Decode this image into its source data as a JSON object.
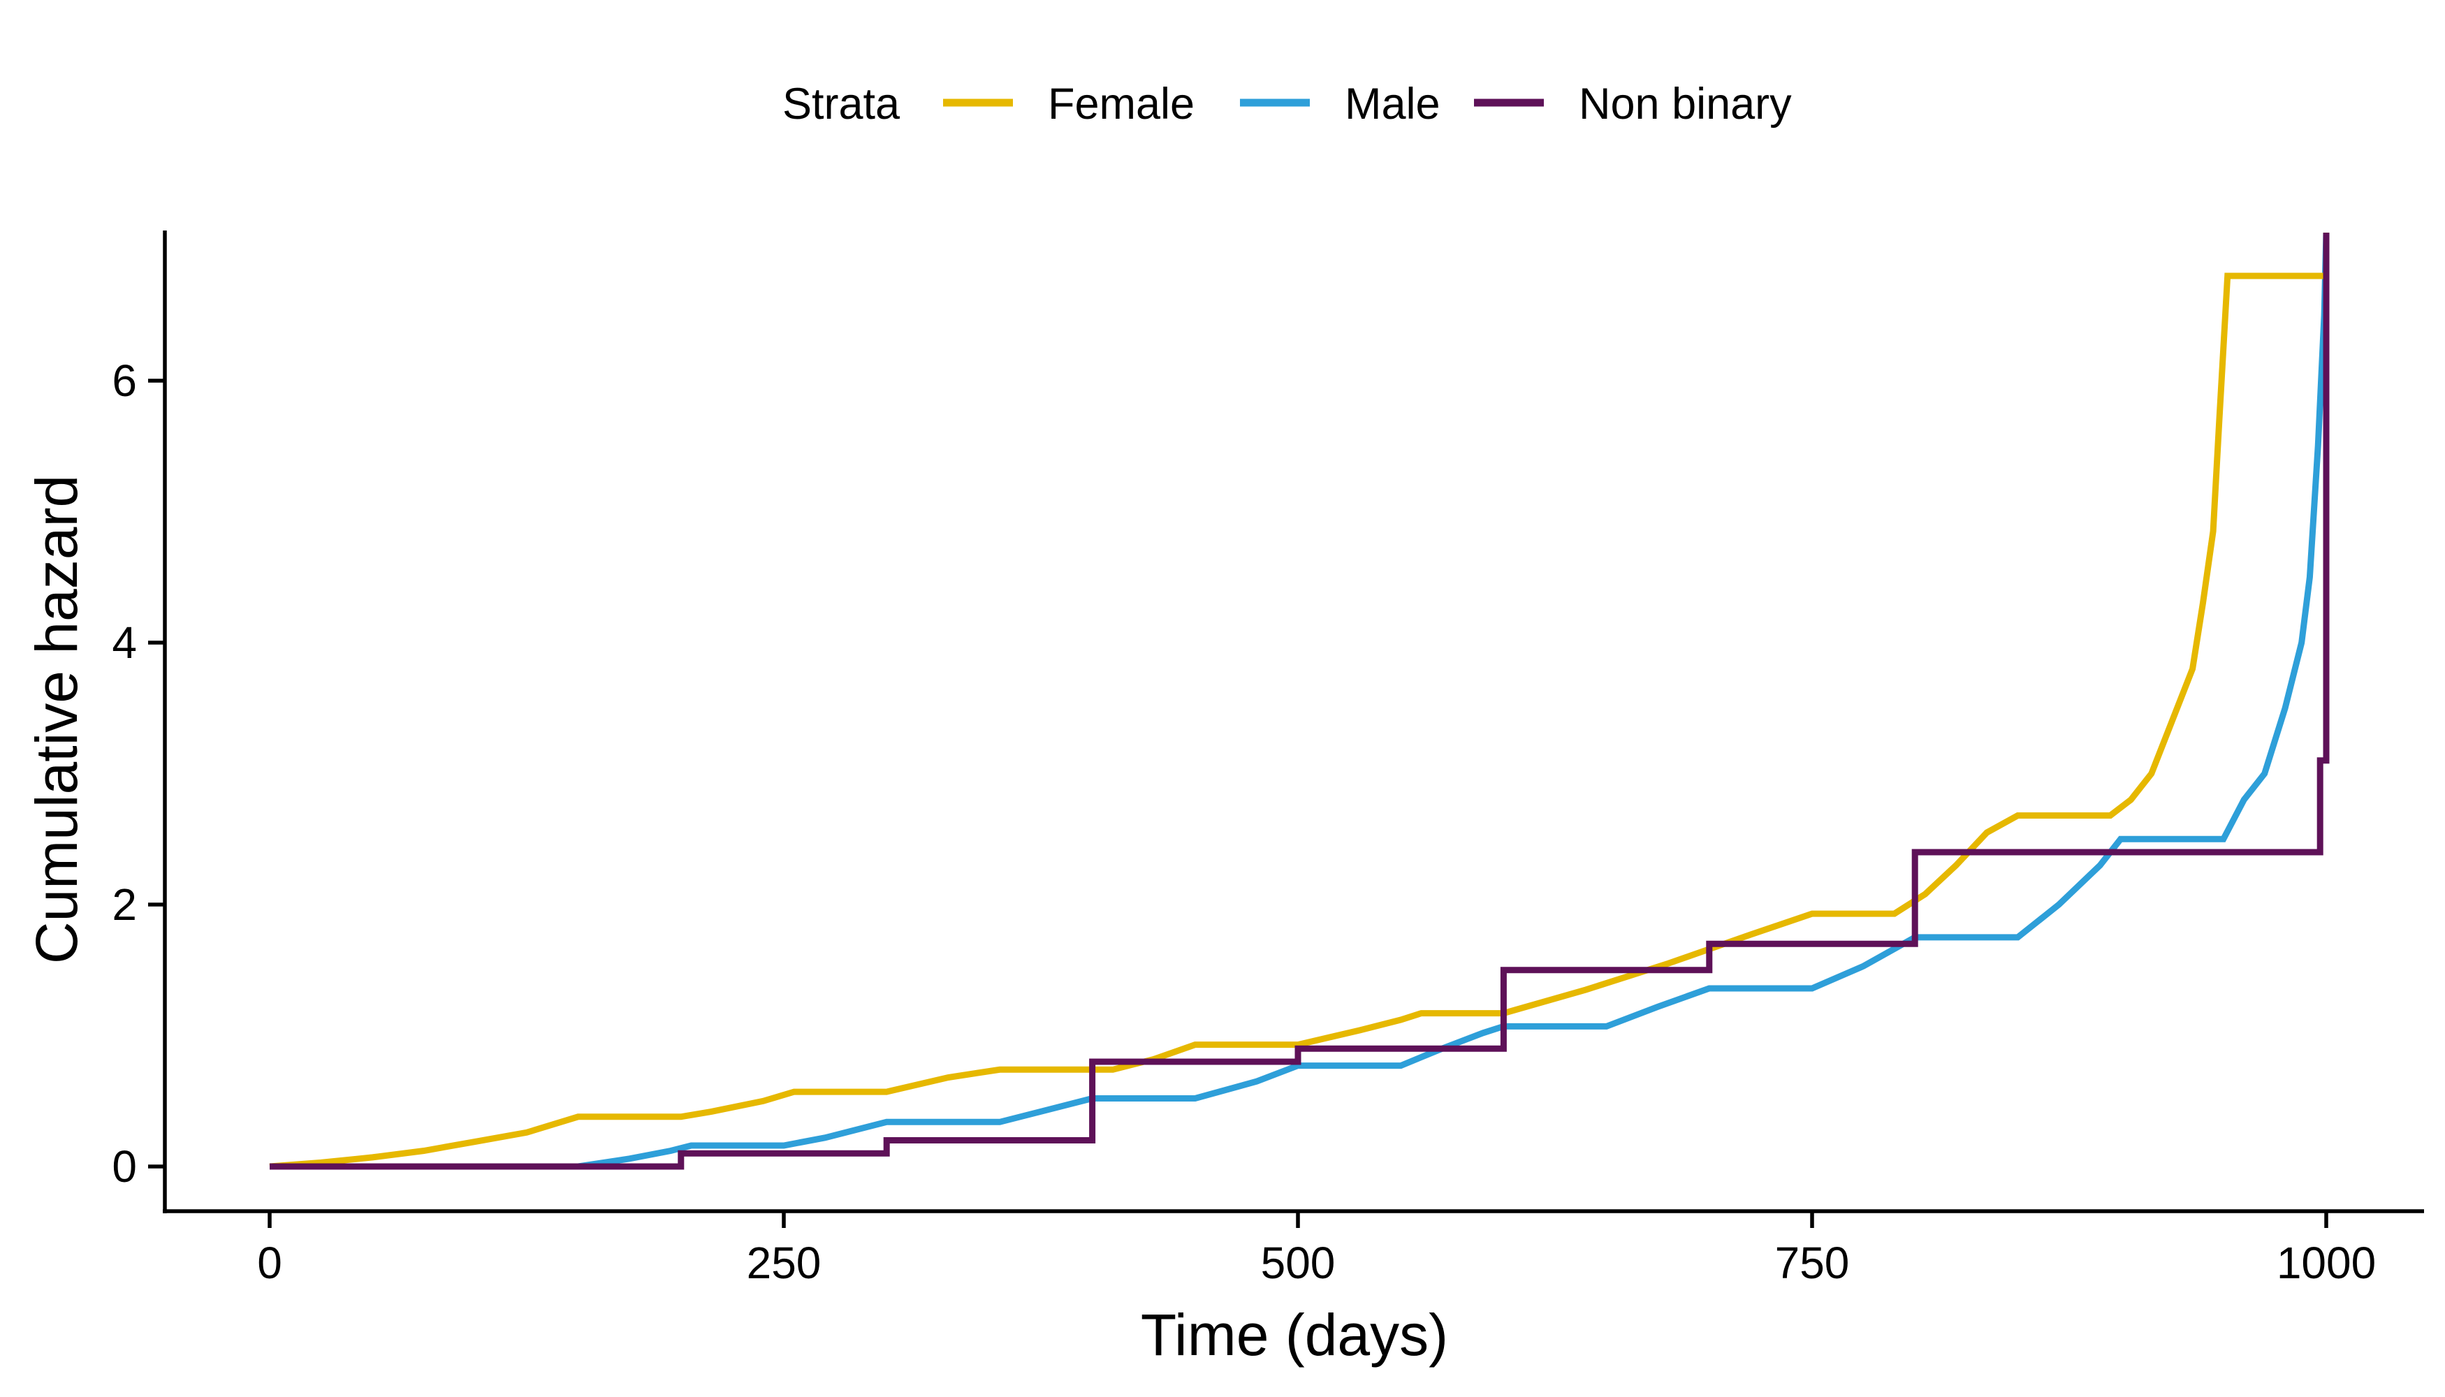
{
  "chart_data": {
    "type": "line",
    "step": true,
    "xlabel": "Time (days)",
    "ylabel": "Cumulative hazard",
    "xlim": [
      -50,
      1050
    ],
    "ylim": [
      -0.33,
      7.13
    ],
    "xticks": [
      0,
      250,
      500,
      750,
      1000
    ],
    "yticks": [
      0,
      2,
      4,
      6
    ],
    "legend": {
      "position": "top",
      "title": "Strata"
    },
    "series": [
      {
        "name": "Female",
        "color": "#E6B800",
        "points": [
          [
            0,
            0
          ],
          [
            25,
            0.03
          ],
          [
            50,
            0.07
          ],
          [
            75,
            0.12
          ],
          [
            100,
            0.19
          ],
          [
            125,
            0.26
          ],
          [
            150,
            0.38
          ],
          [
            170,
            0.38
          ],
          [
            200,
            0.38
          ],
          [
            215,
            0.42
          ],
          [
            240,
            0.5
          ],
          [
            255,
            0.57
          ],
          [
            300,
            0.57
          ],
          [
            330,
            0.68
          ],
          [
            355,
            0.74
          ],
          [
            410,
            0.74
          ],
          [
            430,
            0.82
          ],
          [
            450,
            0.93
          ],
          [
            500,
            0.93
          ],
          [
            530,
            1.04
          ],
          [
            550,
            1.12
          ],
          [
            560,
            1.17
          ],
          [
            600,
            1.17
          ],
          [
            640,
            1.35
          ],
          [
            680,
            1.55
          ],
          [
            720,
            1.77
          ],
          [
            750,
            1.93
          ],
          [
            790,
            1.93
          ],
          [
            805,
            2.08
          ],
          [
            820,
            2.3
          ],
          [
            835,
            2.55
          ],
          [
            850,
            2.68
          ],
          [
            895,
            2.68
          ],
          [
            905,
            2.8
          ],
          [
            915,
            3.0
          ],
          [
            925,
            3.4
          ],
          [
            935,
            3.8
          ],
          [
            940,
            4.3
          ],
          [
            945,
            4.85
          ],
          [
            948,
            5.7
          ],
          [
            952,
            6.8
          ],
          [
            1000,
            6.8
          ],
          [
            1000,
            7.13
          ]
        ]
      },
      {
        "name": "Male",
        "color": "#2E9FD9",
        "points": [
          [
            0,
            0
          ],
          [
            150,
            0
          ],
          [
            175,
            0.06
          ],
          [
            195,
            0.12
          ],
          [
            205,
            0.16
          ],
          [
            250,
            0.16
          ],
          [
            270,
            0.22
          ],
          [
            300,
            0.34
          ],
          [
            355,
            0.34
          ],
          [
            375,
            0.42
          ],
          [
            400,
            0.52
          ],
          [
            450,
            0.52
          ],
          [
            480,
            0.65
          ],
          [
            500,
            0.77
          ],
          [
            550,
            0.77
          ],
          [
            570,
            0.9
          ],
          [
            590,
            1.02
          ],
          [
            600,
            1.07
          ],
          [
            650,
            1.07
          ],
          [
            675,
            1.22
          ],
          [
            700,
            1.36
          ],
          [
            750,
            1.36
          ],
          [
            775,
            1.53
          ],
          [
            800,
            1.75
          ],
          [
            850,
            1.75
          ],
          [
            870,
            2.0
          ],
          [
            890,
            2.3
          ],
          [
            900,
            2.5
          ],
          [
            950,
            2.5
          ],
          [
            960,
            2.8
          ],
          [
            970,
            3.0
          ],
          [
            980,
            3.5
          ],
          [
            988,
            4.0
          ],
          [
            992,
            4.5
          ],
          [
            996,
            5.5
          ],
          [
            999,
            6.5
          ],
          [
            1000,
            7.13
          ]
        ]
      },
      {
        "name": "Non binary",
        "color": "#5E1158",
        "points": [
          [
            0,
            0
          ],
          [
            200,
            0
          ],
          [
            200,
            0.1
          ],
          [
            300,
            0.1
          ],
          [
            300,
            0.2
          ],
          [
            400,
            0.2
          ],
          [
            400,
            0.8
          ],
          [
            500,
            0.8
          ],
          [
            500,
            0.9
          ],
          [
            600,
            0.9
          ],
          [
            600,
            1.5
          ],
          [
            700,
            1.5
          ],
          [
            700,
            1.7
          ],
          [
            800,
            1.7
          ],
          [
            800,
            2.4
          ],
          [
            997,
            2.4
          ],
          [
            997,
            3.1
          ],
          [
            1000,
            3.1
          ],
          [
            1000,
            7.13
          ]
        ]
      }
    ]
  }
}
